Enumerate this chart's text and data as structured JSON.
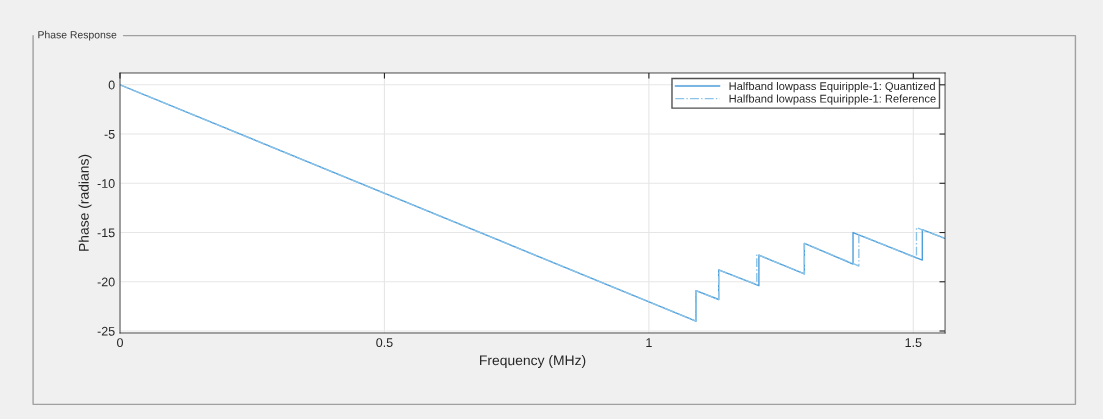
{
  "chart_data": {
    "type": "line",
    "title": "Phase Response",
    "xlabel": "Frequency (MHz)",
    "ylabel": "Phase (radians)",
    "xlim": [
      0,
      1.56
    ],
    "ylim": [
      -25.2,
      1.2
    ],
    "xticks": [
      0,
      0.5,
      1,
      1.5
    ],
    "yticks": [
      0,
      -5,
      -10,
      -15,
      -20,
      -25
    ],
    "grid": true,
    "legend": "top right",
    "series": [
      {
        "name": "Halfband lowpass Equiripple-1: Quantized",
        "color": "#4d9fdc",
        "line_style": "solid",
        "x": [
          0,
          1.089,
          1.089,
          1.132,
          1.132,
          1.208,
          1.208,
          1.294,
          1.294,
          1.386,
          1.386,
          1.517,
          1.517,
          1.56
        ],
        "values": [
          0,
          -24.0,
          -20.9,
          -21.8,
          -18.8,
          -20.4,
          -17.3,
          -19.2,
          -16.1,
          -18.2,
          -15.0,
          -17.8,
          -14.7,
          -15.6
        ]
      },
      {
        "name": "Halfband lowpass Equiripple-1: Reference",
        "color": "#8cc3e8",
        "line_style": "dashdot",
        "x": [
          0,
          1.089,
          1.089,
          1.132,
          1.132,
          1.204,
          1.204,
          1.294,
          1.294,
          1.397,
          1.397,
          1.506,
          1.506,
          1.56
        ],
        "values": [
          0,
          -24.0,
          -20.9,
          -21.8,
          -18.8,
          -20.3,
          -17.2,
          -19.2,
          -16.1,
          -18.4,
          -15.2,
          -17.6,
          -14.5,
          -15.6
        ]
      }
    ]
  }
}
